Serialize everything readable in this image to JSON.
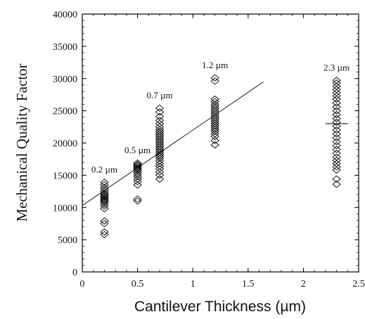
{
  "chart_data": {
    "type": "scatter",
    "title": "",
    "xlabel": "Cantilever Thickness (µm)",
    "ylabel": "Mechanical Quality Factor",
    "xlim": [
      0,
      2.5
    ],
    "ylim": [
      0,
      40000
    ],
    "xticks": [
      0,
      0.5,
      1,
      1.5,
      2,
      2.5
    ],
    "xtick_labels": [
      "0",
      "0.5",
      "1",
      "1.5",
      "2",
      "2.5"
    ],
    "yticks": [
      0,
      5000,
      10000,
      15000,
      20000,
      25000,
      30000,
      35000,
      40000
    ],
    "ytick_labels": [
      "0",
      "5000",
      "10000",
      "15000",
      "20000",
      "25000",
      "30000",
      "35000",
      "40000"
    ],
    "grid": false,
    "marker": "diamond-open",
    "groups": [
      {
        "x": 0.2,
        "label": "0.2 µm",
        "y": [
          5800,
          6200,
          7500,
          7900,
          9800,
          10200,
          10500,
          10800,
          11000,
          11200,
          11400,
          11600,
          11800,
          12000,
          12200,
          12500,
          12800,
          13100,
          13500,
          13900
        ]
      },
      {
        "x": 0.5,
        "label": "0.5 µm",
        "y": [
          11000,
          11300,
          13500,
          14000,
          14400,
          14800,
          15100,
          15400,
          15700,
          15900,
          16100,
          16300,
          16500,
          16700,
          16900
        ]
      },
      {
        "x": 0.7,
        "label": "0.7 µm",
        "y": [
          14400,
          15000,
          15500,
          16000,
          16400,
          16800,
          17200,
          17600,
          17900,
          18200,
          18500,
          18800,
          19100,
          19400,
          19700,
          20000,
          20300,
          20600,
          20900,
          21200,
          21500,
          21800,
          22100,
          22500,
          23000,
          23500,
          24100,
          24800,
          25400
        ]
      },
      {
        "x": 1.2,
        "label": "1.2 µm",
        "y": [
          19700,
          20400,
          21000,
          21400,
          21800,
          22100,
          22400,
          22700,
          23000,
          23300,
          23600,
          23900,
          24200,
          24500,
          24800,
          25100,
          25400,
          25700,
          26000,
          26400,
          26800,
          29600,
          30100
        ]
      },
      {
        "x": 2.3,
        "label": "2.3 µm",
        "y": [
          13600,
          14400,
          15800,
          16300,
          16800,
          17300,
          17800,
          18400,
          19000,
          19600,
          20200,
          20800,
          21400,
          22000,
          22600,
          23200,
          23800,
          24400,
          25000,
          25600,
          26200,
          26800,
          27300,
          27800,
          28300,
          28800,
          29300,
          29700
        ]
      }
    ],
    "fit_line": {
      "x": [
        0,
        1.64
      ],
      "y": [
        10300,
        29500
      ]
    },
    "mean_marker": {
      "x": 2.3,
      "y": 23000
    }
  }
}
